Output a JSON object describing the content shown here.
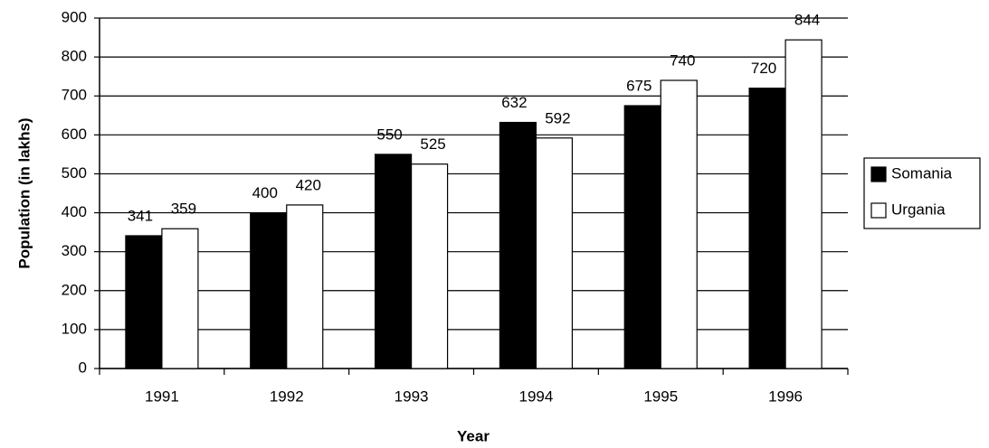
{
  "chart_data": {
    "type": "bar",
    "x_label": "Year",
    "y_label": "Population (in lakhs)",
    "categories": [
      "1991",
      "1992",
      "1993",
      "1994",
      "1995",
      "1996"
    ],
    "series": [
      {
        "name": "Somania",
        "color": "#000000",
        "values": [
          341,
          400,
          550,
          632,
          675,
          720
        ]
      },
      {
        "name": "Urgania",
        "color": "#ffffff",
        "values": [
          359,
          420,
          525,
          592,
          740,
          844
        ]
      }
    ],
    "ylim": [
      0,
      900
    ],
    "yticks": [
      0,
      100,
      200,
      300,
      400,
      500,
      600,
      700,
      800,
      900
    ],
    "grid": true,
    "legend": "right"
  }
}
